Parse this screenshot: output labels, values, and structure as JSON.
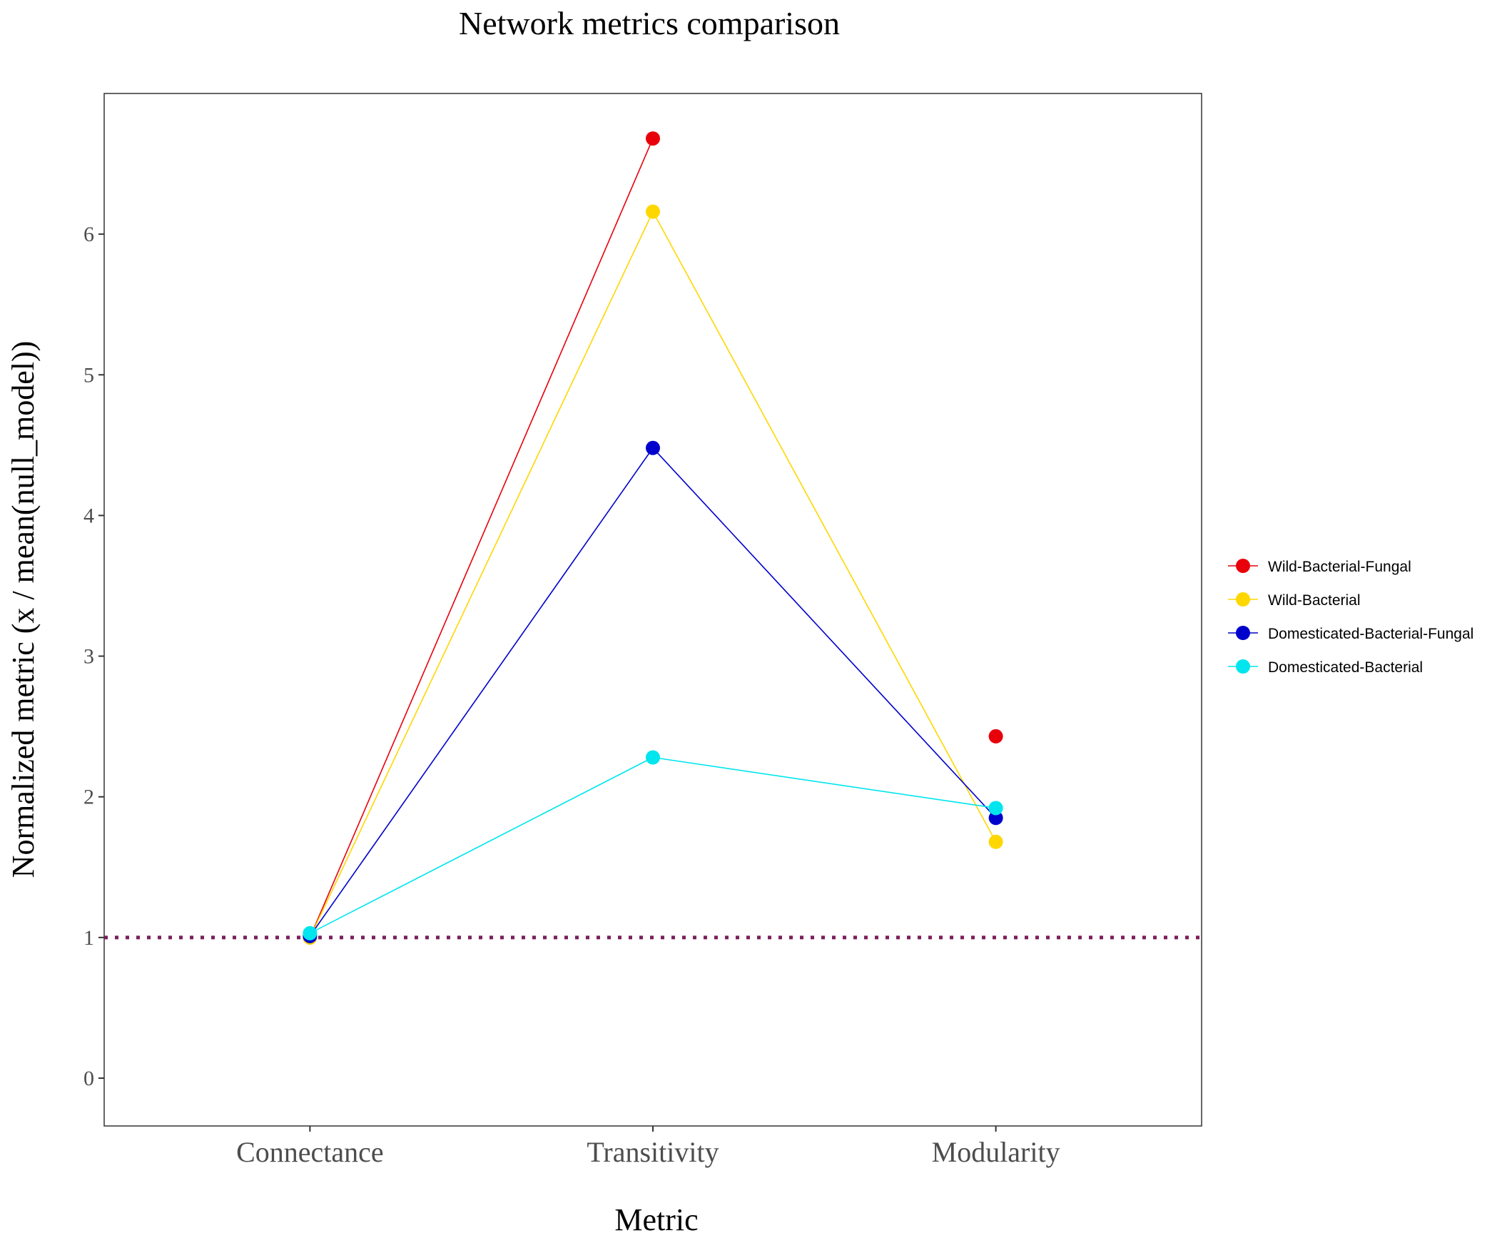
{
  "chart_data": {
    "type": "line",
    "title": "Network metrics comparison",
    "xlabel": "Metric",
    "ylabel": "Normalized metric (x / mean(null_model))",
    "categories": [
      "Connectance",
      "Transitivity",
      "Modularity"
    ],
    "ylim": [
      -0.34,
      7.0
    ],
    "yticks": [
      0,
      1,
      2,
      3,
      4,
      5,
      6
    ],
    "grid": false,
    "legend_position": "right",
    "reference_line": {
      "y": 1,
      "style": "dotted",
      "color": "#7b1f5a"
    },
    "series": [
      {
        "name": "Wild-Bacterial-Fungal",
        "color": "#e8000b",
        "values": [
          1.0,
          6.68,
          2.43
        ],
        "connect": [
          true,
          false
        ]
      },
      {
        "name": "Wild-Bacterial",
        "color": "#ffd700",
        "values": [
          1.0,
          6.16,
          1.68
        ],
        "connect": [
          true,
          true
        ]
      },
      {
        "name": "Domesticated-Bacterial-Fungal",
        "color": "#0000cd",
        "values": [
          1.01,
          4.48,
          1.85
        ],
        "connect": [
          true,
          true
        ]
      },
      {
        "name": "Domesticated-Bacterial",
        "color": "#00e5ee",
        "values": [
          1.03,
          2.28,
          1.92
        ],
        "connect": [
          true,
          true
        ]
      }
    ]
  }
}
